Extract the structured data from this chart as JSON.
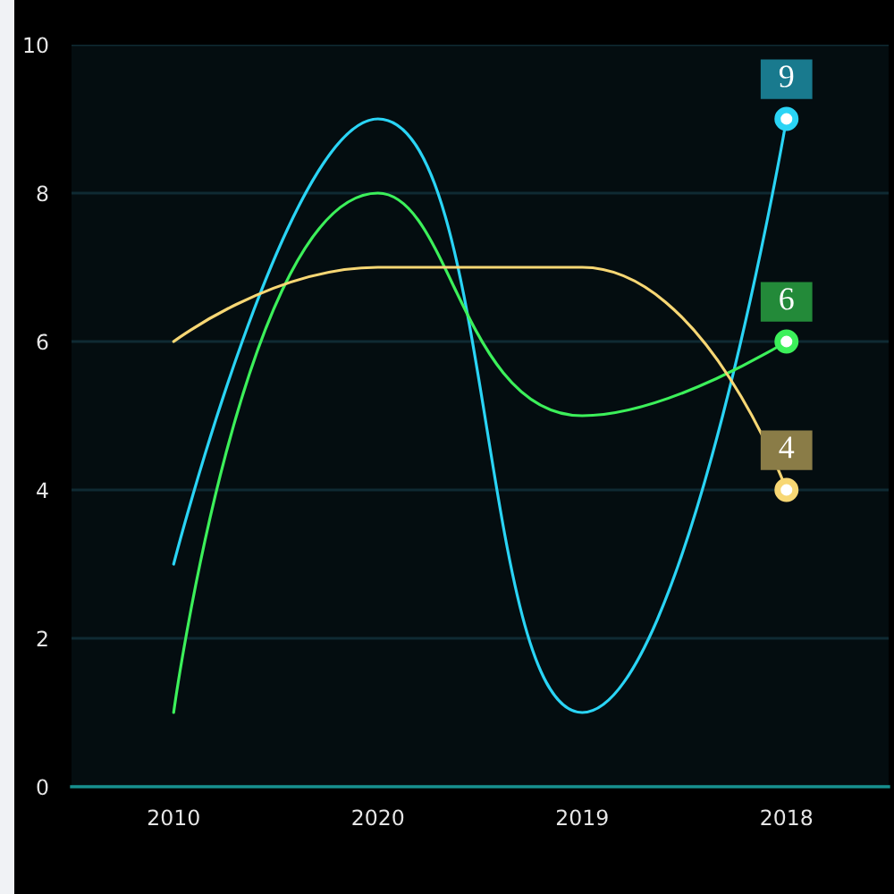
{
  "chart_data": {
    "type": "line",
    "categories": [
      "2010",
      "2020",
      "2019",
      "2018"
    ],
    "ylim": [
      0,
      10
    ],
    "yticks": [
      0,
      2,
      4,
      6,
      8,
      10
    ],
    "grid": "y",
    "line_style": "solid",
    "series": [
      {
        "color": "#2ad4f5",
        "values": [
          3,
          9,
          1,
          9
        ],
        "value_labels": [
          null,
          null,
          null,
          "9"
        ]
      },
      {
        "color": "#3cf05a",
        "values": [
          1,
          8,
          5,
          6
        ],
        "value_labels": [
          null,
          null,
          null,
          "6"
        ]
      },
      {
        "color": "#f7d774",
        "values": [
          6,
          7,
          7,
          4
        ],
        "value_labels": [
          null,
          null,
          null,
          "4"
        ]
      }
    ]
  }
}
